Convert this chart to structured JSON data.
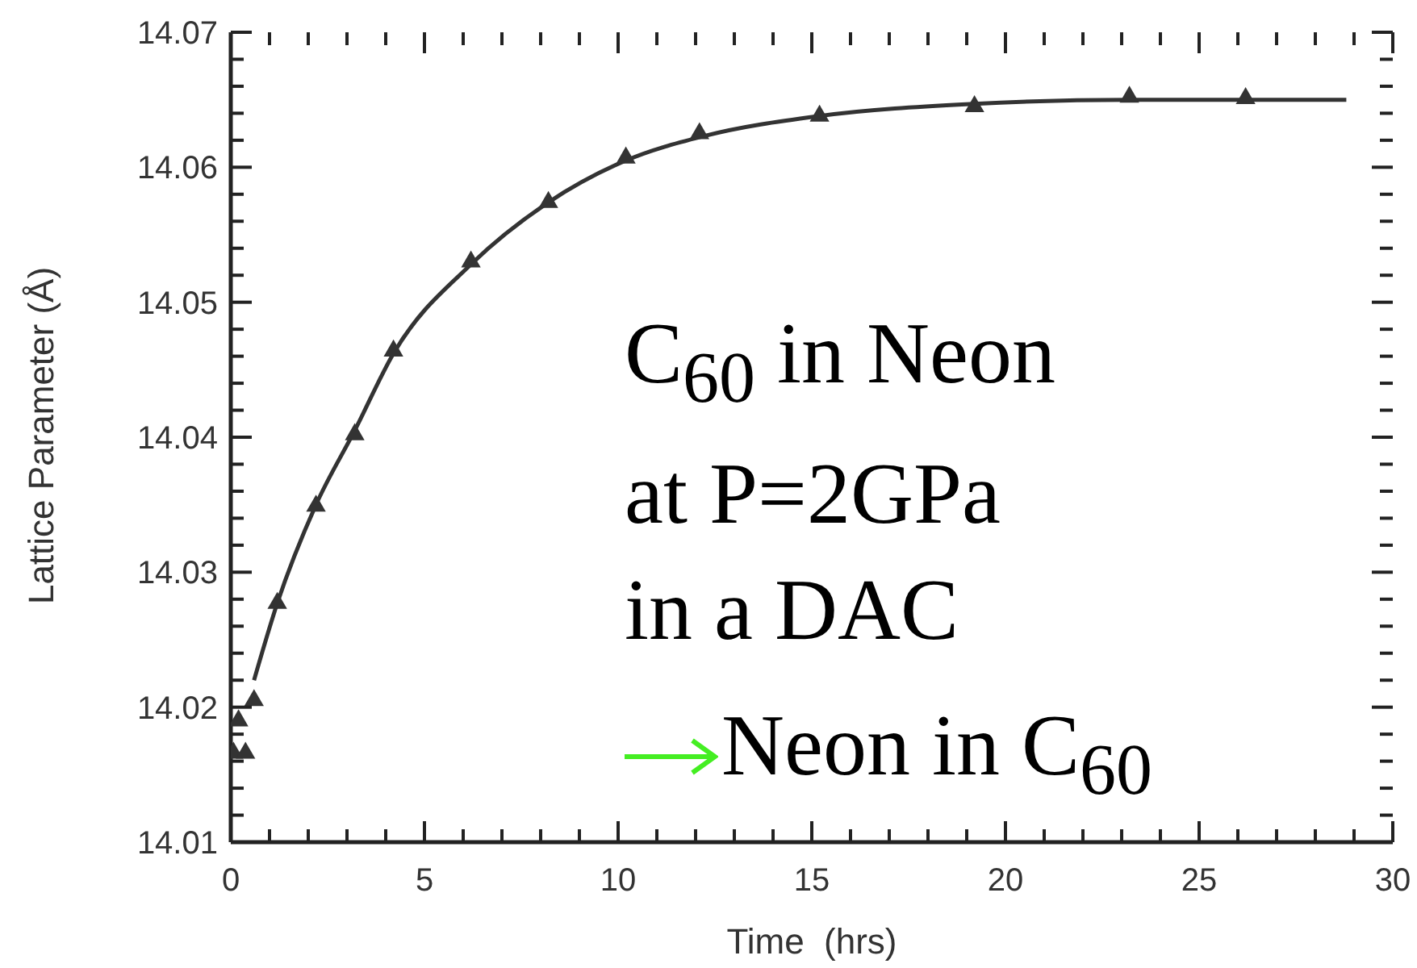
{
  "chart_data": {
    "type": "scatter",
    "xlabel": "Time  (hrs)",
    "ylabel": "Lattice Parameter (Å)",
    "xlim": [
      0,
      30
    ],
    "ylim": [
      14.01,
      14.07
    ],
    "xticks": [
      0,
      {
        "value": 1,
        "label": null
      },
      {
        "value": 2,
        "label": null
      },
      {
        "value": 3,
        "label": null
      },
      {
        "value": 4,
        "label": null
      },
      5,
      {
        "value": 6,
        "label": null
      },
      {
        "value": 7,
        "label": null
      },
      {
        "value": 8,
        "label": null
      },
      {
        "value": 9,
        "label": null
      },
      10,
      {
        "value": 11,
        "label": null
      },
      {
        "value": 12,
        "label": null
      },
      {
        "value": 13,
        "label": null
      },
      {
        "value": 14,
        "label": null
      },
      15,
      {
        "value": 16,
        "label": null
      },
      {
        "value": 17,
        "label": null
      },
      {
        "value": 18,
        "label": null
      },
      {
        "value": 19,
        "label": null
      },
      20,
      {
        "value": 21,
        "label": null
      },
      {
        "value": 22,
        "label": null
      },
      {
        "value": 23,
        "label": null
      },
      {
        "value": 24,
        "label": null
      },
      25,
      {
        "value": 26,
        "label": null
      },
      {
        "value": 27,
        "label": null
      },
      {
        "value": 28,
        "label": null
      },
      {
        "value": 29,
        "label": null
      },
      30
    ],
    "yticks": [
      14.01,
      {
        "value": 14.012,
        "label": null
      },
      {
        "value": 14.014,
        "label": null
      },
      {
        "value": 14.016,
        "label": null
      },
      {
        "value": 14.018,
        "label": null
      },
      14.02,
      {
        "value": 14.022,
        "label": null
      },
      {
        "value": 14.024,
        "label": null
      },
      {
        "value": 14.026,
        "label": null
      },
      {
        "value": 14.028,
        "label": null
      },
      14.03,
      {
        "value": 14.032,
        "label": null
      },
      {
        "value": 14.034,
        "label": null
      },
      {
        "value": 14.036,
        "label": null
      },
      {
        "value": 14.038,
        "label": null
      },
      14.04,
      {
        "value": 14.042,
        "label": null
      },
      {
        "value": 14.044,
        "label": null
      },
      {
        "value": 14.046,
        "label": null
      },
      {
        "value": 14.048,
        "label": null
      },
      14.05,
      {
        "value": 14.052,
        "label": null
      },
      {
        "value": 14.054,
        "label": null
      },
      {
        "value": 14.056,
        "label": null
      },
      {
        "value": 14.058,
        "label": null
      },
      14.06,
      {
        "value": 14.062,
        "label": null
      },
      {
        "value": 14.064,
        "label": null
      },
      {
        "value": 14.066,
        "label": null
      },
      {
        "value": 14.068,
        "label": null
      },
      14.07
    ],
    "annotations": [
      "C$_{60}$ in Neon",
      "at P=2GPa",
      "in a DAC",
      "Neon in C$_{60}$"
    ],
    "series": [
      {
        "marker": "triangle",
        "color": "#333333",
        "x": [
          0.07,
          0.38,
          0.2,
          0.6,
          1.2,
          2.2,
          3.2,
          4.2,
          6.2,
          8.2,
          10.2,
          12.1,
          15.2,
          19.2,
          23.2,
          26.2
        ],
        "values": [
          14.0166,
          14.0166,
          14.019,
          14.0205,
          14.0277,
          14.0349,
          14.0402,
          14.0464,
          14.053,
          14.0574,
          14.0607,
          14.0625,
          14.0638,
          14.0645,
          14.0652,
          14.0651
        ]
      },
      {
        "type": "line",
        "marker": "none",
        "color": "#333333",
        "x": [
          0.6,
          1.2,
          2.2,
          3.2,
          4.2,
          6.2,
          8.2,
          10.2,
          12.2,
          15.2,
          19.2,
          23.2,
          28.8
        ],
        "values": [
          14.022,
          14.0277,
          14.035,
          14.0405,
          14.0462,
          14.0528,
          14.0574,
          14.0605,
          14.0623,
          14.0638,
          14.0647,
          14.065,
          14.065
        ]
      }
    ]
  }
}
